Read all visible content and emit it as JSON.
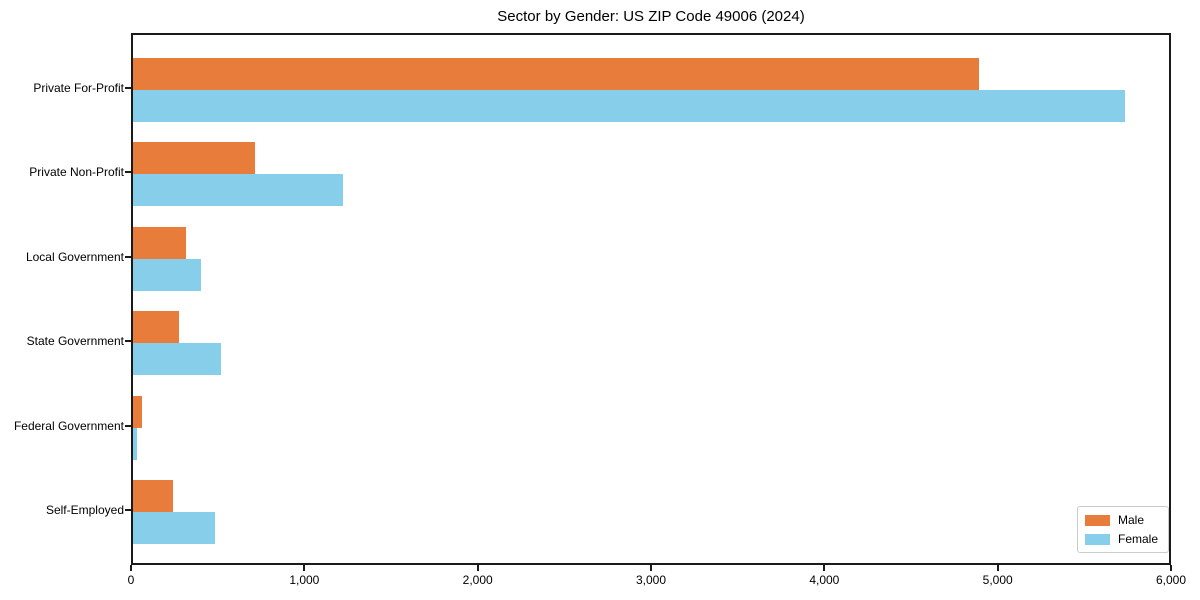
{
  "figure": {
    "title": "Sector by Gender: US ZIP Code 49006 (2024)"
  },
  "chart_data": {
    "type": "bar",
    "orientation": "horizontal",
    "title": "Sector by Gender: US ZIP Code 49006 (2024)",
    "categories": [
      "Private For-Profit",
      "Private Non-Profit",
      "Local Government",
      "State Government",
      "Federal Government",
      "Self-Employed"
    ],
    "series": [
      {
        "name": "Male",
        "color": "#e87d3b",
        "values": [
          4880,
          705,
          305,
          265,
          50,
          230
        ]
      },
      {
        "name": "Female",
        "color": "#87ceeb",
        "values": [
          5725,
          1210,
          390,
          510,
          20,
          470
        ]
      }
    ],
    "xlabel": "",
    "ylabel": "",
    "xlim": [
      0,
      6000
    ],
    "x_ticks": [
      0,
      1000,
      2000,
      3000,
      4000,
      5000,
      6000
    ],
    "x_tick_labels": [
      "0",
      "1,000",
      "2,000",
      "3,000",
      "4,000",
      "5,000",
      "6,000"
    ],
    "grid": false,
    "legend": {
      "position": "lower right",
      "labels": [
        "Male",
        "Female"
      ]
    }
  }
}
